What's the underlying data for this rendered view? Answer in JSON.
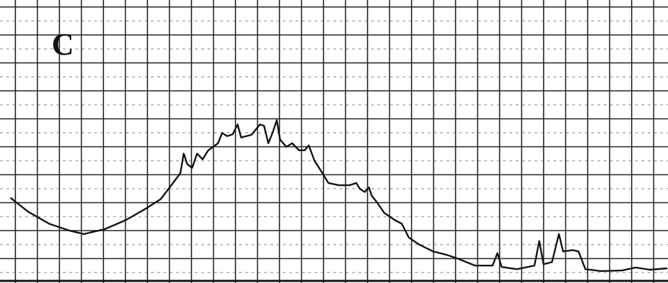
{
  "chart_data": {
    "type": "line",
    "annotation": "C",
    "color": "#111111",
    "xlim": [
      0,
      30
    ],
    "ylim": [
      0,
      10
    ],
    "x": [
      0.47,
      1.26,
      2.2,
      3.14,
      3.77,
      4.71,
      5.65,
      6.59,
      7.22,
      7.69,
      8.1,
      8.25,
      8.41,
      8.63,
      8.85,
      9.1,
      9.35,
      9.57,
      9.79,
      9.98,
      10.2,
      10.45,
      10.67,
      10.83,
      11.3,
      11.67,
      11.86,
      12.05,
      12.24,
      12.43,
      12.58,
      12.86,
      13.12,
      13.43,
      13.68,
      13.87,
      14.12,
      14.43,
      14.75,
      15.22,
      15.69,
      16.0,
      16.16,
      16.38,
      16.57,
      16.69,
      16.94,
      17.26,
      17.73,
      18.04,
      18.36,
      18.83,
      19.45,
      20.08,
      20.55,
      21.34,
      22.12,
      22.34,
      22.53,
      23.22,
      24.0,
      24.22,
      24.41,
      24.79,
      25.1,
      25.29,
      25.73,
      25.98,
      26.29,
      26.98,
      27.93,
      28.55,
      29.18,
      29.97
    ],
    "values": [
      3.0,
      2.49,
      2.05,
      1.79,
      1.67,
      1.85,
      2.18,
      2.62,
      2.95,
      3.46,
      3.9,
      4.62,
      4.23,
      4.1,
      4.62,
      4.41,
      4.74,
      4.87,
      5.0,
      5.38,
      5.26,
      5.33,
      5.69,
      5.21,
      5.31,
      5.69,
      5.64,
      5.0,
      5.38,
      5.85,
      5.13,
      4.87,
      5.0,
      4.74,
      4.74,
      4.92,
      4.36,
      3.97,
      3.54,
      3.46,
      3.46,
      3.54,
      3.33,
      3.21,
      3.38,
      3.08,
      2.82,
      2.44,
      2.18,
      2.05,
      1.54,
      1.28,
      1.03,
      0.9,
      0.77,
      0.51,
      0.51,
      0.97,
      0.46,
      0.38,
      0.51,
      1.41,
      0.56,
      0.64,
      1.67,
      1.03,
      1.08,
      1.03,
      0.38,
      0.31,
      0.33,
      0.44,
      0.36,
      0.41
    ],
    "grid": true
  }
}
